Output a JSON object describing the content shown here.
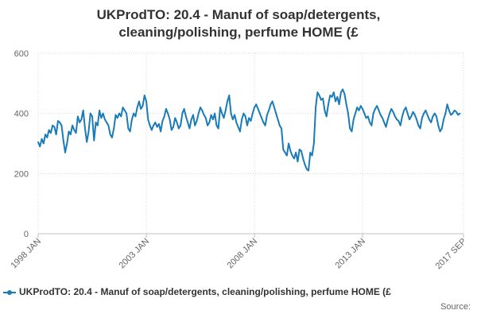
{
  "chart_data": {
    "type": "line",
    "title_line1": "UKProdTO: 20.4 - Manuf of soap/detergents,",
    "title_line2": "cleaning/polishing, perfume HOME (£",
    "xlabel": "",
    "ylabel": "",
    "ylim": [
      0,
      600
    ],
    "y_ticks": [
      0,
      200,
      400,
      600
    ],
    "x_tick_labels": [
      {
        "label": "1998 JAN",
        "date": "1998-01"
      },
      {
        "label": "2003 JAN",
        "date": "2003-01"
      },
      {
        "label": "2008 JAN",
        "date": "2008-01"
      },
      {
        "label": "2013 JAN",
        "date": "2013-01"
      },
      {
        "label": "2017 SEP",
        "date": "2017-09"
      }
    ],
    "x_range": [
      "1998-01",
      "2017-09"
    ],
    "grid": true,
    "legend_position": "bottom",
    "series": [
      {
        "name": "UKProdTO: 20.4 - Manuf of soap/detergents, cleaning/polishing, perfume HOME (£",
        "color": "#1a7bb9",
        "x_start": "1998-01",
        "frequency": "monthly",
        "values": [
          305,
          290,
          315,
          300,
          330,
          320,
          345,
          335,
          360,
          355,
          330,
          375,
          370,
          360,
          310,
          270,
          300,
          340,
          330,
          360,
          345,
          335,
          390,
          370,
          380,
          410,
          350,
          305,
          340,
          400,
          390,
          310,
          370,
          360,
          410,
          385,
          400,
          380,
          370,
          360,
          330,
          320,
          350,
          395,
          385,
          400,
          390,
          420,
          410,
          400,
          350,
          340,
          380,
          400,
          390,
          420,
          440,
          415,
          425,
          460,
          440,
          380,
          360,
          345,
          360,
          370,
          355,
          365,
          340,
          375,
          390,
          415,
          400,
          380,
          345,
          355,
          385,
          370,
          350,
          360,
          400,
          415,
          390,
          370,
          350,
          380,
          395,
          360,
          375,
          400,
          420,
          410,
          395,
          385,
          360,
          370,
          395,
          380,
          400,
          360,
          350,
          420,
          400,
          385,
          410,
          440,
          460,
          400,
          380,
          395,
          370,
          355,
          340,
          380,
          400,
          390,
          360,
          385,
          375,
          400,
          420,
          430,
          415,
          400,
          385,
          370,
          360,
          395,
          410,
          430,
          440,
          420,
          400,
          380,
          360,
          350,
          280,
          270,
          260,
          300,
          275,
          260,
          250,
          270,
          240,
          280,
          275,
          250,
          230,
          215,
          210,
          270,
          260,
          300,
          420,
          470,
          460,
          445,
          450,
          410,
          390,
          430,
          460,
          455,
          470,
          440,
          455,
          430,
          470,
          480,
          465,
          430,
          400,
          350,
          340,
          380,
          400,
          420,
          410,
          425,
          415,
          400,
          385,
          390,
          370,
          360,
          400,
          415,
          425,
          410,
          395,
          385,
          370,
          355,
          380,
          400,
          415,
          405,
          390,
          380,
          375,
          360,
          390,
          410,
          420,
          400,
          380,
          390,
          405,
          395,
          380,
          360,
          350,
          385,
          400,
          410,
          395,
          380,
          370,
          390,
          400,
          390,
          360,
          340,
          350,
          380,
          400,
          430,
          410,
          395,
          400,
          410,
          405,
          395,
          400
        ]
      }
    ],
    "source_label": "Source:"
  }
}
